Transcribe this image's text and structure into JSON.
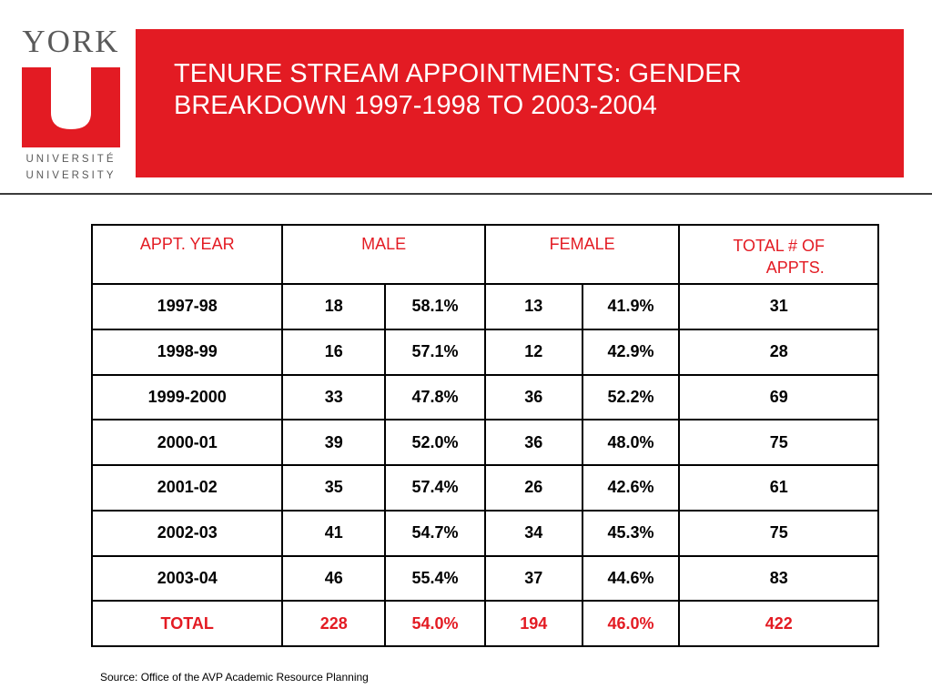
{
  "logo": {
    "wordmark": "YORK",
    "line1": "UNIVERSITÉ",
    "line2": "UNIVERSITY",
    "color": "#e31b23"
  },
  "slide": {
    "title_line1": "TENURE STREAM APPOINTMENTS: GENDER",
    "title_line2": "BREAKDOWN 1997-1998 TO 2003-2004",
    "accent_color": "#e31b23"
  },
  "table": {
    "headers": {
      "year": "APPT. YEAR",
      "male": "MALE",
      "female": "FEMALE",
      "total_line1": "TOTAL # OF",
      "total_line2": "APPTS."
    },
    "rows": [
      {
        "year": "1997-98",
        "male": "18",
        "male_pct": "58.1%",
        "female": "13",
        "female_pct": "41.9%",
        "total": "31"
      },
      {
        "year": "1998-99",
        "male": "16",
        "male_pct": "57.1%",
        "female": "12",
        "female_pct": "42.9%",
        "total": "28"
      },
      {
        "year": "1999-2000",
        "male": "33",
        "male_pct": "47.8%",
        "female": "36",
        "female_pct": "52.2%",
        "total": "69"
      },
      {
        "year": "2000-01",
        "male": "39",
        "male_pct": "52.0%",
        "female": "36",
        "female_pct": "48.0%",
        "total": "75"
      },
      {
        "year": "2001-02",
        "male": "35",
        "male_pct": "57.4%",
        "female": "26",
        "female_pct": "42.6%",
        "total": "61"
      },
      {
        "year": "2002-03",
        "male": "41",
        "male_pct": "54.7%",
        "female": "34",
        "female_pct": "45.3%",
        "total": "75"
      },
      {
        "year": "2003-04",
        "male": "46",
        "male_pct": "55.4%",
        "female": "37",
        "female_pct": "44.6%",
        "total": "83"
      }
    ],
    "total_row": {
      "year": "TOTAL",
      "male": "228",
      "male_pct": "54.0%",
      "female": "194",
      "female_pct": "46.0%",
      "total": "422"
    }
  },
  "source": "Source: Office of the AVP Academic Resource Planning"
}
